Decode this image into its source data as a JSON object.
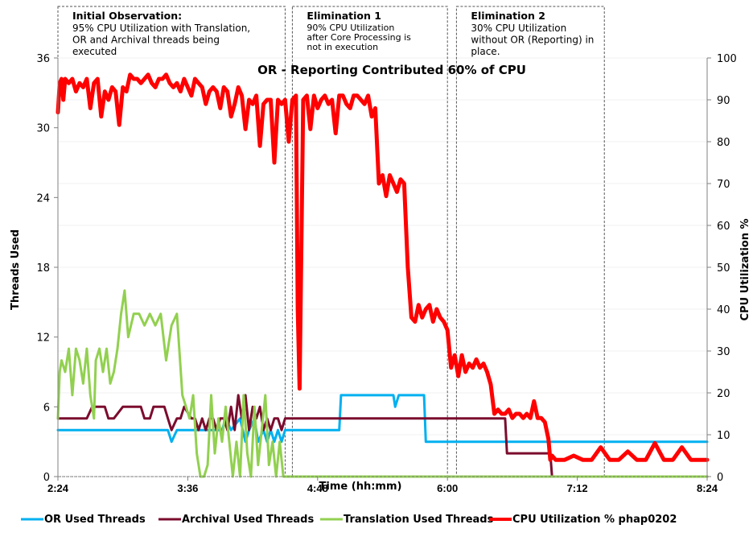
{
  "chart_data": {
    "type": "line",
    "title": "OR - Reporting Contributed 60% of CPU",
    "xlabel": "Time (hh:mm)",
    "ylabel": "Threads Used",
    "y2label": "CPU Utilization %",
    "x_ticks": [
      "2:24",
      "3:36",
      "4:48",
      "6:00",
      "7:12",
      "8:24"
    ],
    "x_range_minutes": [
      144,
      504
    ],
    "ylim": [
      0,
      36
    ],
    "y_ticks": [
      0,
      6,
      12,
      18,
      24,
      30,
      36
    ],
    "y2lim": [
      0,
      100
    ],
    "y2_ticks": [
      0,
      10,
      20,
      30,
      40,
      50,
      60,
      70,
      80,
      90,
      100
    ],
    "grid": true,
    "legend_position": "bottom",
    "annotations": [
      {
        "title": "Initial Observation:",
        "lines": [
          "95% CPU Utilization with Translation,",
          "OR and  Archival threads being",
          "executed"
        ],
        "x_start_min": 144,
        "x_end_min": 270
      },
      {
        "title": "Elimination 1",
        "lines": [
          "90% CPU Utilization",
          "after Core Processing is",
          "not in execution"
        ],
        "x_start_min": 274,
        "x_end_min": 360
      },
      {
        "title": "Elimination 2",
        "lines": [
          "30% CPU Utilization",
          "without OR (Reporting) in",
          "place."
        ],
        "x_start_min": 365,
        "x_end_min": 447
      }
    ],
    "series": [
      {
        "name": "OR  Used Threads",
        "axis": "left",
        "color": "#00b0f0",
        "x": [
          144,
          150,
          160,
          170,
          180,
          190,
          200,
          205,
          207,
          210,
          220,
          230,
          235,
          237,
          240,
          245,
          248,
          250,
          253,
          255,
          258,
          260,
          262,
          264,
          266,
          268,
          270,
          300,
          301,
          302,
          330,
          331,
          333,
          335,
          336,
          340,
          347,
          348,
          350,
          360,
          504
        ],
        "y": [
          4,
          4,
          4,
          4,
          4,
          4,
          4,
          4,
          3,
          4,
          4,
          4,
          4,
          5,
          4,
          5,
          3,
          4,
          5,
          3,
          4,
          3,
          4,
          3,
          4,
          3,
          4,
          4,
          7,
          7,
          7,
          6,
          7,
          7,
          7,
          7,
          7,
          3,
          3,
          3,
          3
        ]
      },
      {
        "name": "Archival  Used Threads",
        "axis": "left",
        "color": "#7b0c2e",
        "x": [
          144,
          160,
          163,
          165,
          170,
          172,
          175,
          180,
          182,
          190,
          192,
          195,
          197,
          200,
          203,
          205,
          207,
          210,
          212,
          214,
          218,
          220,
          222,
          224,
          226,
          228,
          230,
          232,
          234,
          236,
          238,
          240,
          242,
          244,
          246,
          248,
          250,
          252,
          254,
          256,
          258,
          260,
          262,
          264,
          266,
          268,
          270,
          280,
          290,
          300,
          330,
          340,
          350,
          380,
          392,
          393,
          394,
          400,
          410,
          417,
          418,
          420,
          504
        ],
        "y": [
          5,
          5,
          6,
          6,
          6,
          5,
          5,
          6,
          6,
          6,
          5,
          5,
          6,
          6,
          6,
          5,
          4,
          5,
          5,
          6,
          5,
          5,
          4,
          5,
          4,
          5,
          5,
          4,
          5,
          5,
          4,
          6,
          4,
          7,
          5,
          7,
          4,
          6,
          5,
          6,
          4,
          5,
          4,
          5,
          5,
          4,
          5,
          5,
          5,
          5,
          5,
          5,
          5,
          5,
          5,
          2,
          2,
          2,
          2,
          2,
          0,
          0,
          0
        ]
      },
      {
        "name": "Translation Used Threads",
        "axis": "left",
        "color": "#92d050",
        "x": [
          144,
          145,
          146,
          148,
          150,
          152,
          154,
          156,
          158,
          160,
          162,
          164,
          165,
          167,
          169,
          171,
          173,
          175,
          177,
          179,
          181,
          183,
          186,
          189,
          192,
          195,
          198,
          201,
          204,
          207,
          210,
          213,
          215,
          217,
          219,
          221,
          223,
          225,
          227,
          229,
          231,
          233,
          235,
          237,
          239,
          241,
          243,
          245,
          247,
          249,
          251,
          253,
          255,
          257,
          259,
          261,
          263,
          265,
          267,
          269,
          271,
          275,
          300,
          330,
          360,
          400,
          450,
          504
        ],
        "y": [
          5,
          9,
          10,
          9,
          11,
          7,
          11,
          10,
          8,
          11,
          7,
          5,
          10,
          11,
          9,
          11,
          8,
          9,
          11,
          14,
          16,
          12,
          14,
          14,
          13,
          14,
          13,
          14,
          10,
          13,
          14,
          7,
          6,
          5,
          7,
          2,
          0,
          0,
          1,
          7,
          2,
          5,
          3,
          6,
          3,
          0,
          3,
          0,
          7,
          2,
          0,
          6,
          1,
          4,
          7,
          1,
          3,
          0,
          3,
          0,
          0,
          0,
          0,
          0,
          0,
          0,
          0,
          0
        ]
      },
      {
        "name": "CPU Utilization %  phap0202",
        "axis": "right",
        "color": "#ff0000",
        "x": [
          144,
          145,
          146,
          147,
          148,
          150,
          152,
          154,
          156,
          158,
          160,
          162,
          164,
          166,
          168,
          170,
          172,
          174,
          176,
          178,
          180,
          182,
          184,
          186,
          188,
          190,
          192,
          194,
          196,
          198,
          200,
          202,
          204,
          206,
          208,
          210,
          212,
          214,
          216,
          218,
          220,
          222,
          224,
          226,
          228,
          230,
          232,
          234,
          236,
          238,
          240,
          242,
          244,
          246,
          248,
          250,
          252,
          254,
          256,
          258,
          260,
          262,
          264,
          266,
          268,
          270,
          272,
          274,
          276,
          277,
          278,
          280,
          282,
          284,
          286,
          288,
          290,
          292,
          294,
          296,
          298,
          300,
          302,
          304,
          306,
          308,
          310,
          312,
          314,
          316,
          318,
          320,
          322,
          324,
          326,
          328,
          330,
          332,
          334,
          336,
          338,
          340,
          342,
          344,
          346,
          348,
          350,
          352,
          354,
          356,
          358,
          360,
          362,
          364,
          366,
          368,
          370,
          372,
          374,
          376,
          378,
          380,
          382,
          384,
          386,
          388,
          390,
          392,
          394,
          396,
          398,
          400,
          402,
          404,
          406,
          408,
          410,
          412,
          414,
          416,
          417,
          418,
          420,
          425,
          430,
          435,
          440,
          445,
          450,
          455,
          460,
          465,
          470,
          475,
          480,
          485,
          490,
          495,
          500,
          504
        ],
        "y": [
          87,
          94,
          95,
          90,
          95,
          94,
          95,
          92,
          94,
          93,
          95,
          88,
          94,
          95,
          86,
          92,
          90,
          93,
          92,
          84,
          93,
          92,
          96,
          95,
          95,
          94,
          95,
          96,
          94,
          93,
          95,
          95,
          96,
          94,
          93,
          94,
          92,
          95,
          93,
          91,
          95,
          94,
          93,
          89,
          92,
          93,
          92,
          88,
          93,
          92,
          86,
          89,
          93,
          91,
          83,
          90,
          89,
          91,
          79,
          89,
          90,
          90,
          75,
          90,
          89,
          90,
          80,
          90,
          91,
          40,
          21,
          90,
          91,
          83,
          91,
          88,
          90,
          91,
          89,
          90,
          82,
          91,
          91,
          89,
          88,
          91,
          91,
          90,
          89,
          91,
          86,
          88,
          70,
          72,
          67,
          72,
          70,
          68,
          71,
          70,
          50,
          38,
          37,
          41,
          38,
          40,
          41,
          37,
          40,
          38,
          37,
          35,
          26,
          29,
          24,
          29,
          25,
          27,
          26,
          28,
          26,
          27,
          25,
          22,
          15,
          16,
          15,
          15,
          16,
          14,
          15,
          15,
          14,
          15,
          14,
          18,
          14,
          14,
          13,
          9,
          4,
          5,
          4,
          4,
          5,
          4,
          4,
          7,
          4,
          4,
          6,
          4,
          4,
          8,
          4,
          4,
          7,
          4,
          4,
          4
        ]
      }
    ]
  }
}
